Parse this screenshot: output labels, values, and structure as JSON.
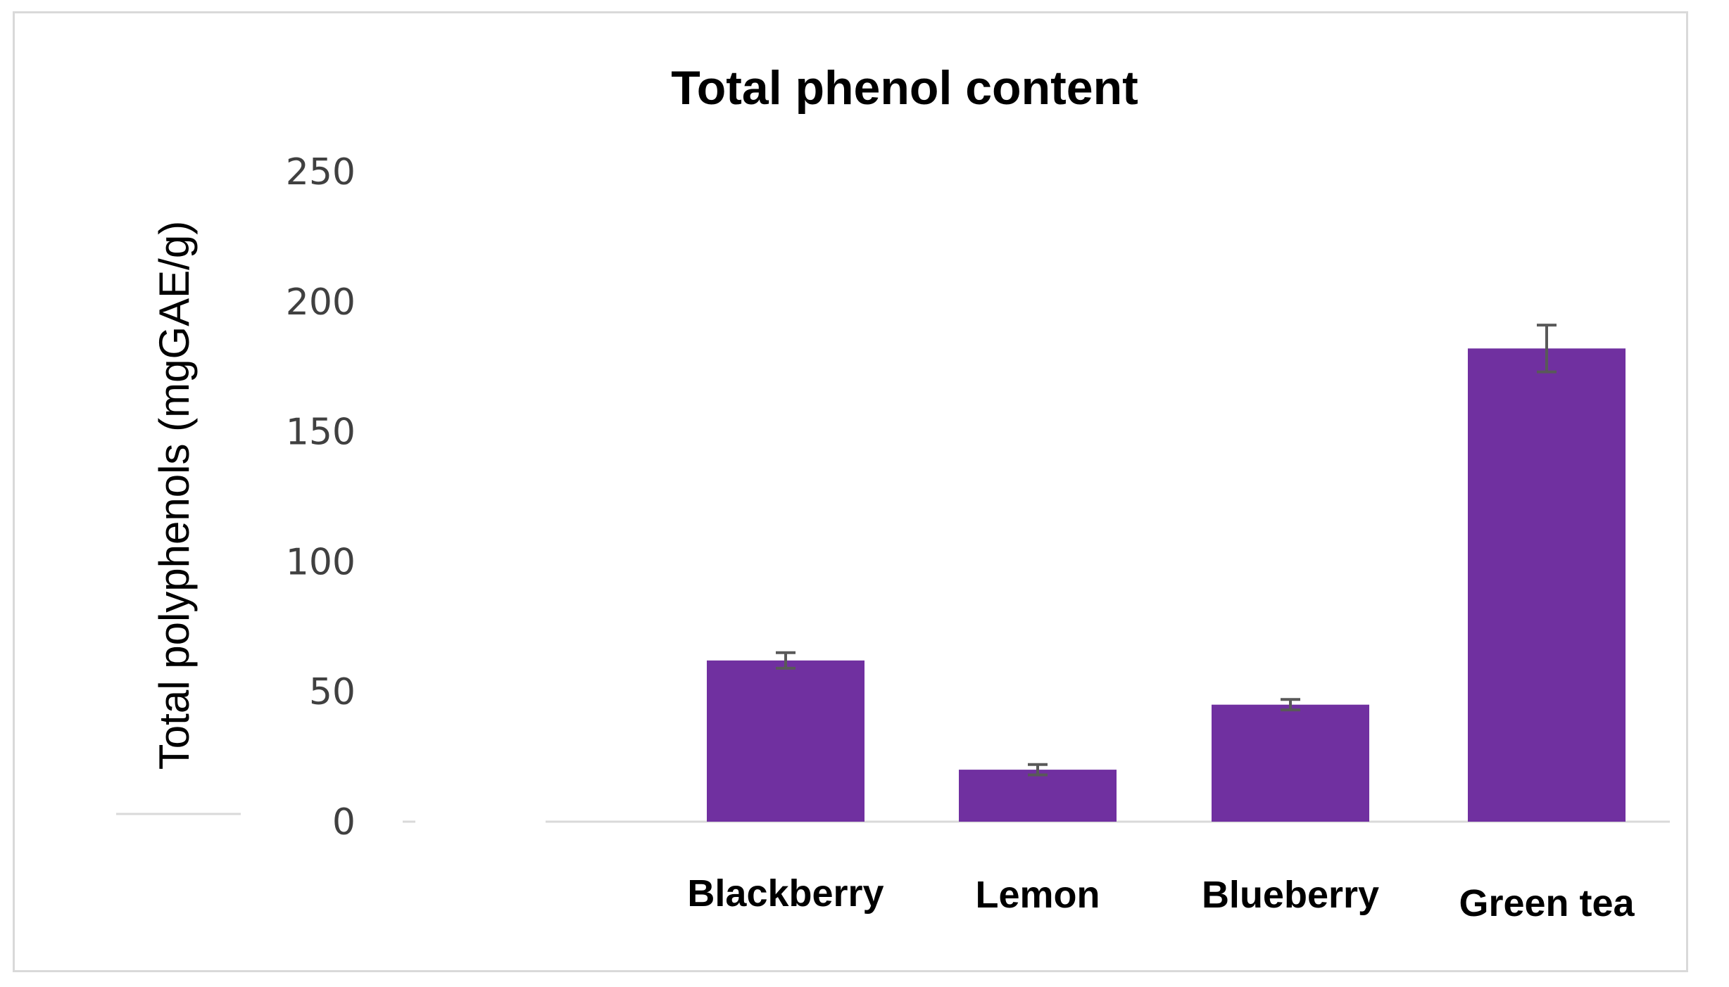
{
  "chart_data": {
    "type": "bar",
    "title": "Total phenol content",
    "xlabel": "",
    "ylabel": "Total polyphenols (mgGAE/g)",
    "categories": [
      "Blackberry",
      "Lemon",
      "Blueberry",
      "Green tea"
    ],
    "values": [
      62,
      20,
      45,
      182
    ],
    "errors": [
      3,
      2,
      2,
      9
    ],
    "ylim": [
      0,
      250
    ],
    "yticks": [
      "0",
      "50",
      "100",
      "150",
      "200",
      "250"
    ],
    "grid": false,
    "legend": "none",
    "bar_color": "#7030a0",
    "error_color": "#595959"
  }
}
